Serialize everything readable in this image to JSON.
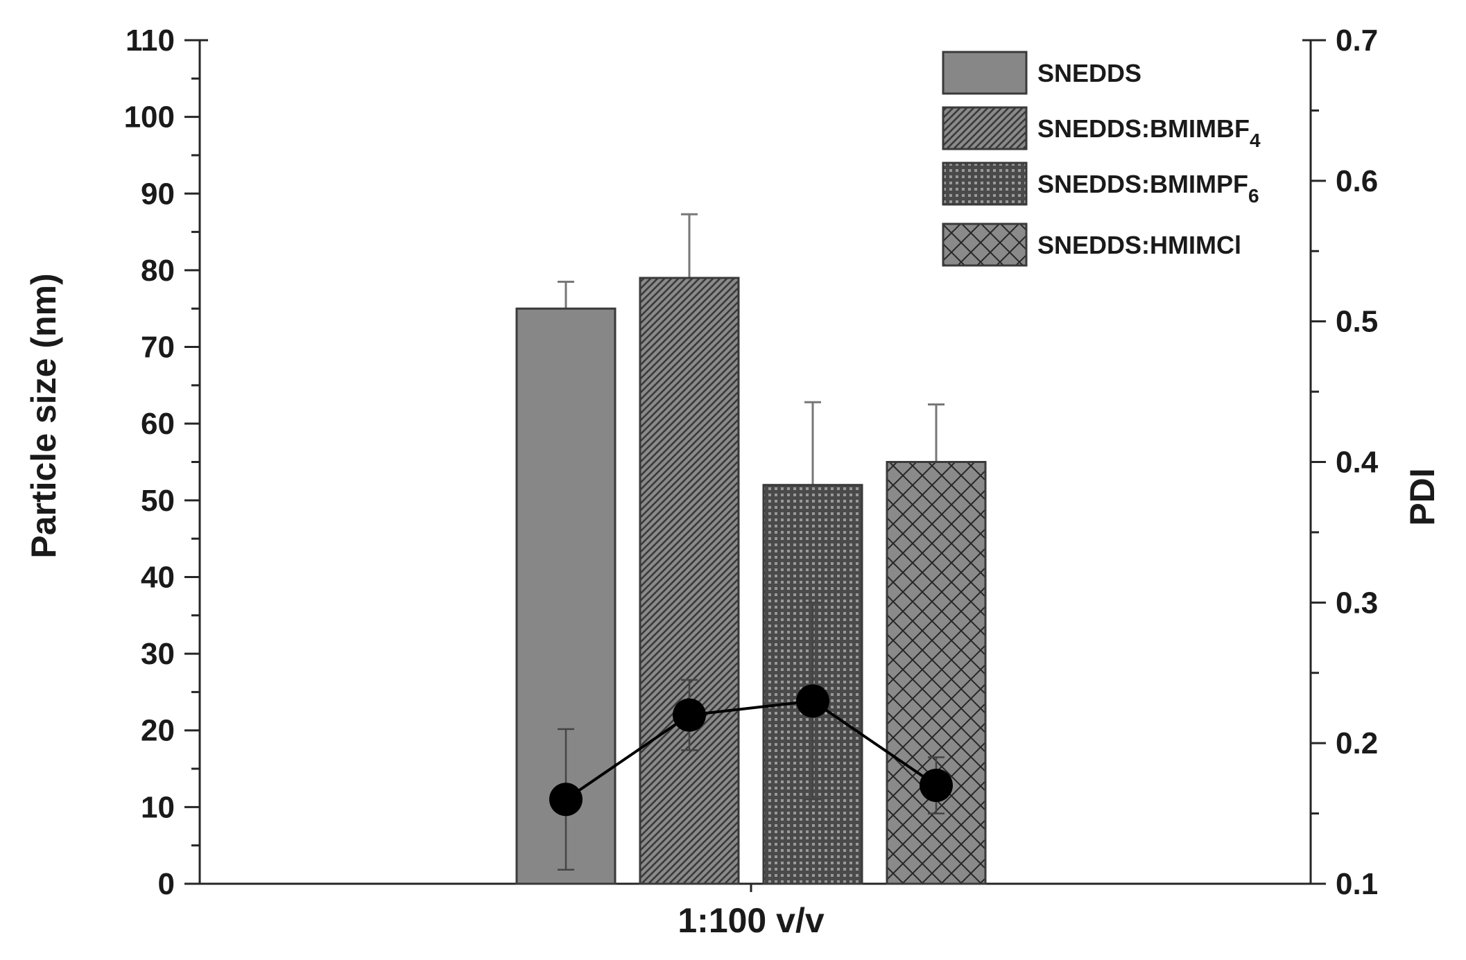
{
  "chart_data": {
    "type": "bar",
    "title": "",
    "xlabel": "1:100 v/v",
    "ylabel": "Particle size (nm)",
    "y2label": "PDI",
    "ylim": [
      0,
      110
    ],
    "y2lim": [
      0.1,
      0.7
    ],
    "yticks": [
      "0",
      "10",
      "20",
      "30",
      "40",
      "50",
      "60",
      "70",
      "80",
      "90",
      "100",
      "110"
    ],
    "y2ticks": [
      "0.1",
      "0.2",
      "0.3",
      "0.4",
      "0.5",
      "0.6",
      "0.7"
    ],
    "grid": false,
    "legend_position": "top-right",
    "categories": [
      "1:100 v/v"
    ],
    "series": [
      {
        "name": "SNEDDS",
        "sub": "",
        "pattern": "solid",
        "value": 75,
        "error": 3.5,
        "pdi": 0.16,
        "pdi_error": 0.05
      },
      {
        "name": "SNEDDS:BMIMBF",
        "sub": "4",
        "pattern": "diagonal",
        "value": 79,
        "error": 8.3,
        "pdi": 0.22,
        "pdi_error": 0.025
      },
      {
        "name": "SNEDDS:BMIMPF",
        "sub": "6",
        "pattern": "dots",
        "value": 52,
        "error": 10.8,
        "pdi": 0.23,
        "pdi_error": 0.07
      },
      {
        "name": "SNEDDS:HMIMCl",
        "sub": "",
        "pattern": "crosshatch",
        "value": 55,
        "error": 7.5,
        "pdi": 0.17,
        "pdi_error": 0.02
      }
    ],
    "colors": {
      "bar": "#878787",
      "line": "#000000",
      "axis": "#262626"
    }
  }
}
